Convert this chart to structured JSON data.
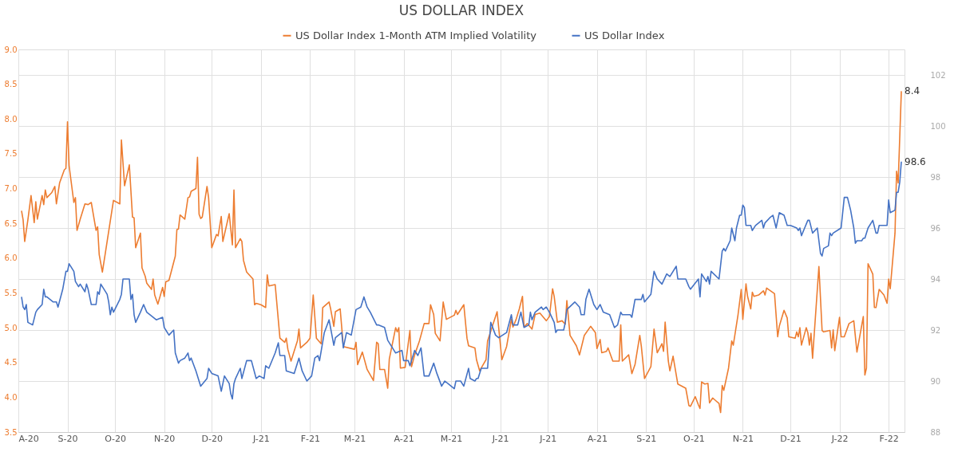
{
  "chart_data": {
    "type": "line",
    "title": "US DOLLAR INDEX",
    "xlim": [
      "2020-08-01",
      "2022-02-11"
    ],
    "xticks": [
      {
        "value": "2020-08-01",
        "label": "A-20"
      },
      {
        "value": "2020-09-01",
        "label": "S-20"
      },
      {
        "value": "2020-10-01",
        "label": "O-20"
      },
      {
        "value": "2020-11-01",
        "label": "N-20"
      },
      {
        "value": "2020-12-01",
        "label": "D-20"
      },
      {
        "value": "2021-01-01",
        "label": "J-21"
      },
      {
        "value": "2021-02-01",
        "label": "F-21"
      },
      {
        "value": "2021-03-01",
        "label": "M-21"
      },
      {
        "value": "2021-04-01",
        "label": "A-21"
      },
      {
        "value": "2021-05-01",
        "label": "M-21"
      },
      {
        "value": "2021-06-01",
        "label": "J-21"
      },
      {
        "value": "2021-07-01",
        "label": "J-21"
      },
      {
        "value": "2021-08-01",
        "label": "A-21"
      },
      {
        "value": "2021-09-01",
        "label": "S-21"
      },
      {
        "value": "2021-10-01",
        "label": "O-21"
      },
      {
        "value": "2021-11-01",
        "label": "N-21"
      },
      {
        "value": "2021-12-01",
        "label": "D-21"
      },
      {
        "value": "2022-01-01",
        "label": "J-22"
      },
      {
        "value": "2022-02-01",
        "label": "F-22"
      }
    ],
    "ylim": [
      3.5,
      9.0
    ],
    "yticks": [
      {
        "value": 3.5,
        "label": "3.5"
      },
      {
        "value": 4,
        "label": "4.0"
      },
      {
        "value": 4.5,
        "label": "4.5"
      },
      {
        "value": 5,
        "label": "5.0"
      },
      {
        "value": 5.5,
        "label": "5.5"
      },
      {
        "value": 6,
        "label": "6.0"
      },
      {
        "value": 6.5,
        "label": "6.5"
      },
      {
        "value": 7,
        "label": "7.0"
      },
      {
        "value": 7.5,
        "label": "7.5"
      },
      {
        "value": 8,
        "label": "8.0"
      },
      {
        "value": 8.5,
        "label": "8.5"
      },
      {
        "value": 9,
        "label": "9.0"
      }
    ],
    "y2lim": [
      88,
      103
    ],
    "y2ticks": [
      {
        "value": 88,
        "label": "88"
      },
      {
        "value": 90,
        "label": "90"
      },
      {
        "value": 92,
        "label": "92"
      },
      {
        "value": 94,
        "label": "94"
      },
      {
        "value": 96,
        "label": "96"
      },
      {
        "value": 98,
        "label": "98"
      },
      {
        "value": 100,
        "label": "100"
      },
      {
        "value": 102,
        "label": "102"
      }
    ],
    "grid": true,
    "legend": "top",
    "marker": "none",
    "line_style": "solid",
    "series": [
      {
        "name": "US Dollar Index 1-Month ATM Implied Volatility",
        "color": "#ed7d31",
        "axis": "y",
        "value_labels": [
          null,
          null,
          null,
          null,
          null,
          null,
          null,
          null,
          null,
          null,
          null,
          null,
          null,
          null,
          null,
          null,
          null,
          null,
          null,
          null,
          null,
          null,
          null,
          null,
          null,
          null,
          null,
          null,
          null,
          null,
          null,
          null,
          null,
          null,
          null,
          null,
          null,
          null,
          null,
          null,
          null,
          null,
          null,
          null,
          null,
          null,
          null,
          null,
          null,
          null,
          null,
          null,
          null,
          null,
          null,
          null,
          null,
          null,
          null,
          null,
          null,
          null,
          null,
          null,
          null,
          null,
          null,
          null,
          null,
          null,
          null,
          null,
          null,
          null,
          null,
          null,
          null,
          null,
          null,
          null,
          null,
          null,
          null,
          null,
          null,
          null,
          null,
          null,
          null,
          null,
          null,
          null,
          null,
          null,
          null,
          null,
          null,
          null,
          null,
          null,
          null,
          null,
          null,
          null,
          null,
          null,
          null,
          null,
          null,
          null,
          null,
          null,
          null,
          null,
          null,
          null,
          null,
          null,
          null,
          null,
          null,
          null,
          null,
          null,
          null,
          null,
          null,
          null,
          null,
          null,
          null,
          null,
          null,
          null,
          null,
          null,
          null,
          null,
          null,
          null,
          null,
          null,
          null,
          null,
          null,
          null,
          null,
          null,
          null,
          null,
          null,
          null,
          null,
          null,
          null,
          null,
          null,
          null,
          null,
          null,
          null,
          null,
          null,
          null,
          null,
          null,
          null,
          null,
          null,
          null,
          null,
          null,
          null,
          null,
          null,
          null,
          null,
          null,
          null,
          null,
          null,
          null,
          null,
          null,
          null,
          null,
          null,
          null,
          null,
          null,
          null,
          null,
          null,
          null,
          null,
          null,
          null,
          null,
          null,
          null,
          null,
          null,
          null,
          null,
          null,
          null,
          null,
          null,
          null,
          null,
          null,
          null,
          null,
          null,
          null,
          null,
          null,
          null,
          null,
          null,
          null,
          null,
          null,
          null,
          null,
          null,
          null,
          null,
          null,
          null,
          null,
          null,
          null,
          null,
          null,
          null,
          null,
          null,
          null,
          null,
          null,
          null,
          null,
          null,
          null,
          null,
          null,
          null,
          null,
          null,
          null,
          null,
          null,
          null,
          null,
          null,
          null,
          null,
          null,
          null,
          null,
          null,
          null,
          null,
          null,
          null,
          null,
          null,
          null,
          null,
          null,
          null,
          null,
          null,
          null,
          null,
          null,
          null,
          "8.4"
        ],
        "x": [
          "2020-08-03",
          "2020-08-04",
          "2020-08-05",
          "2020-08-07",
          "2020-08-09",
          "2020-08-11",
          "2020-08-12",
          "2020-08-13",
          "2020-08-16",
          "2020-08-17",
          "2020-08-18",
          "2020-08-19",
          "2020-08-22",
          "2020-08-24",
          "2020-08-25",
          "2020-08-27",
          "2020-08-30",
          "2020-08-31",
          "2020-09-01",
          "2020-09-02",
          "2020-09-05",
          "2020-09-06",
          "2020-09-07",
          "2020-09-09",
          "2020-09-12",
          "2020-09-14",
          "2020-09-16",
          "2020-09-19",
          "2020-09-20",
          "2020-09-21",
          "2020-09-23",
          "2020-09-26",
          "2020-09-30",
          "2020-10-04",
          "2020-10-05",
          "2020-10-07",
          "2020-10-10",
          "2020-10-12",
          "2020-10-13",
          "2020-10-14",
          "2020-10-17",
          "2020-10-18",
          "2020-10-20",
          "2020-10-21",
          "2020-10-24",
          "2020-10-25",
          "2020-10-26",
          "2020-10-28",
          "2020-10-31",
          "2020-11-01",
          "2020-11-02",
          "2020-11-04",
          "2020-11-08",
          "2020-11-09",
          "2020-11-10",
          "2020-11-11",
          "2020-11-14",
          "2020-11-16",
          "2020-11-17",
          "2020-11-18",
          "2020-11-21",
          "2020-11-22",
          "2020-11-23",
          "2020-11-24",
          "2020-11-25",
          "2020-11-28",
          "2020-11-29",
          "2020-12-01",
          "2020-12-04",
          "2020-12-05",
          "2020-12-07",
          "2020-12-08",
          "2020-12-12",
          "2020-12-14",
          "2020-12-15",
          "2020-12-16",
          "2020-12-19",
          "2020-12-20",
          "2020-12-21",
          "2020-12-23",
          "2020-12-27",
          "2020-12-28",
          "2020-12-29",
          "2021-01-01",
          "2021-01-04",
          "2021-01-05",
          "2021-01-06",
          "2021-01-10",
          "2021-01-13",
          "2021-01-16",
          "2021-01-17",
          "2021-01-18",
          "2021-01-20",
          "2021-01-24",
          "2021-01-25",
          "2021-01-26",
          "2021-01-30",
          "2021-02-01",
          "2021-02-03",
          "2021-02-05",
          "2021-02-08",
          "2021-02-09",
          "2021-02-13",
          "2021-02-14",
          "2021-02-16",
          "2021-02-17",
          "2021-02-20",
          "2021-02-22",
          "2021-03-01",
          "2021-03-02",
          "2021-03-03",
          "2021-03-06",
          "2021-03-09",
          "2021-03-13",
          "2021-03-15",
          "2021-03-16",
          "2021-03-17",
          "2021-03-20",
          "2021-03-22",
          "2021-03-23",
          "2021-03-27",
          "2021-03-28",
          "2021-03-29",
          "2021-03-30",
          "2021-04-02",
          "2021-04-05",
          "2021-04-06",
          "2021-04-08",
          "2021-04-11",
          "2021-04-14",
          "2021-04-17",
          "2021-04-18",
          "2021-04-20",
          "2021-04-21",
          "2021-04-24",
          "2021-04-26",
          "2021-04-28",
          "2021-05-03",
          "2021-05-04",
          "2021-05-05",
          "2021-05-09",
          "2021-05-11",
          "2021-05-12",
          "2021-05-16",
          "2021-05-17",
          "2021-05-19",
          "2021-05-21",
          "2021-05-23",
          "2021-05-24",
          "2021-05-27",
          "2021-05-30",
          "2021-05-31",
          "2021-06-02",
          "2021-06-05",
          "2021-06-08",
          "2021-06-09",
          "2021-06-11",
          "2021-06-13",
          "2021-06-15",
          "2021-06-16",
          "2021-06-18",
          "2021-06-21",
          "2021-06-23",
          "2021-06-26",
          "2021-06-30",
          "2021-07-02",
          "2021-07-04",
          "2021-07-05",
          "2021-07-07",
          "2021-07-10",
          "2021-07-12",
          "2021-07-13",
          "2021-07-15",
          "2021-07-19",
          "2021-07-21",
          "2021-07-24",
          "2021-07-28",
          "2021-07-31",
          "2021-08-01",
          "2021-08-03",
          "2021-08-04",
          "2021-08-07",
          "2021-08-08",
          "2021-08-11",
          "2021-08-15",
          "2021-08-16",
          "2021-08-17",
          "2021-08-21",
          "2021-08-23",
          "2021-08-25",
          "2021-08-28",
          "2021-08-29",
          "2021-08-31",
          "2021-09-04",
          "2021-09-06",
          "2021-09-08",
          "2021-09-11",
          "2021-09-12",
          "2021-09-13",
          "2021-09-15",
          "2021-09-16",
          "2021-09-18",
          "2021-09-21",
          "2021-09-26",
          "2021-09-28",
          "2021-09-29",
          "2021-10-02",
          "2021-10-04",
          "2021-10-05",
          "2021-10-06",
          "2021-10-08",
          "2021-10-10",
          "2021-10-11",
          "2021-10-13",
          "2021-10-15",
          "2021-10-17",
          "2021-10-18",
          "2021-10-19",
          "2021-10-20",
          "2021-10-23",
          "2021-10-25",
          "2021-10-26",
          "2021-10-29",
          "2021-10-31",
          "2021-11-01",
          "2021-11-03",
          "2021-11-04",
          "2021-11-06",
          "2021-11-07",
          "2021-11-08",
          "2021-11-11",
          "2021-11-14",
          "2021-11-15",
          "2021-11-16",
          "2021-11-21",
          "2021-11-23",
          "2021-11-24",
          "2021-11-27",
          "2021-11-29",
          "2021-11-30",
          "2021-12-04",
          "2021-12-05",
          "2021-12-06",
          "2021-12-07",
          "2021-12-08",
          "2021-12-11",
          "2021-12-12",
          "2021-12-13",
          "2021-12-14",
          "2021-12-15",
          "2021-12-19",
          "2021-12-21",
          "2021-12-22",
          "2021-12-26",
          "2021-12-27",
          "2021-12-28",
          "2021-12-29",
          "2022-01-01",
          "2022-01-02",
          "2022-01-04",
          "2022-01-07",
          "2022-01-10",
          "2022-01-12",
          "2022-01-16",
          "2022-01-17",
          "2022-01-18",
          "2022-01-19",
          "2022-01-22",
          "2022-01-23",
          "2022-01-24",
          "2022-01-26",
          "2022-01-29",
          "2022-01-31",
          "2022-02-01",
          "2022-02-02",
          "2022-02-05",
          "2022-02-06",
          "2022-02-07",
          "2022-02-09"
        ],
        "values": [
          6.68,
          6.55,
          6.24,
          6.55,
          6.9,
          6.51,
          6.81,
          6.56,
          6.9,
          6.77,
          6.98,
          6.87,
          6.94,
          7.03,
          6.78,
          7.08,
          7.27,
          7.29,
          7.96,
          7.33,
          6.8,
          6.87,
          6.4,
          6.56,
          6.78,
          6.77,
          6.8,
          6.4,
          6.45,
          6.05,
          5.8,
          6.24,
          6.83,
          6.78,
          7.7,
          7.04,
          7.34,
          6.59,
          6.58,
          6.15,
          6.36,
          5.86,
          5.74,
          5.64,
          5.55,
          5.7,
          5.47,
          5.34,
          5.58,
          5.45,
          5.66,
          5.68,
          6.03,
          6.41,
          6.42,
          6.62,
          6.56,
          6.87,
          6.88,
          6.96,
          7.0,
          7.45,
          6.63,
          6.57,
          6.59,
          7.03,
          6.87,
          6.15,
          6.34,
          6.32,
          6.6,
          6.24,
          6.64,
          6.19,
          6.98,
          6.15,
          6.28,
          6.24,
          5.97,
          5.8,
          5.7,
          5.33,
          5.35,
          5.33,
          5.29,
          5.76,
          5.6,
          5.62,
          4.85,
          4.79,
          4.85,
          4.69,
          4.52,
          4.81,
          4.98,
          4.71,
          4.79,
          4.85,
          5.47,
          4.85,
          4.77,
          5.29,
          5.37,
          5.27,
          5.02,
          5.23,
          5.27,
          4.73,
          4.69,
          4.79,
          4.47,
          4.65,
          4.4,
          4.24,
          4.79,
          4.77,
          4.4,
          4.4,
          4.13,
          4.55,
          5.0,
          4.94,
          5.0,
          4.42,
          4.43,
          4.96,
          4.44,
          4.61,
          4.81,
          5.06,
          5.06,
          5.33,
          5.19,
          4.92,
          4.81,
          5.37,
          5.12,
          5.18,
          5.25,
          5.19,
          5.33,
          4.85,
          4.74,
          4.71,
          4.54,
          4.38,
          4.46,
          4.54,
          4.81,
          5.02,
          5.23,
          5.0,
          4.54,
          4.73,
          5.12,
          5.01,
          5.12,
          5.27,
          5.45,
          5.01,
          5.06,
          4.98,
          5.19,
          5.21,
          5.1,
          5.16,
          5.56,
          5.45,
          5.08,
          5.1,
          5.05,
          5.39,
          4.89,
          4.74,
          4.61,
          4.89,
          5.02,
          4.93,
          4.7,
          4.83,
          4.64,
          4.66,
          4.71,
          4.52,
          4.52,
          5.04,
          4.52,
          4.61,
          4.34,
          4.47,
          4.89,
          4.73,
          4.27,
          4.44,
          4.98,
          4.64,
          4.77,
          4.66,
          5.08,
          4.52,
          4.38,
          4.59,
          4.19,
          4.13,
          3.88,
          3.87,
          4.01,
          3.89,
          3.84,
          4.22,
          4.19,
          4.2,
          3.92,
          3.99,
          3.95,
          3.91,
          3.78,
          4.17,
          4.1,
          4.42,
          4.81,
          4.75,
          5.19,
          5.55,
          5.12,
          5.63,
          5.45,
          5.27,
          5.51,
          5.45,
          5.47,
          5.53,
          5.47,
          5.57,
          5.49,
          4.87,
          5.02,
          5.25,
          5.14,
          4.87,
          4.85,
          4.94,
          4.87,
          5.0,
          4.75,
          5.0,
          4.93,
          4.75,
          4.92,
          4.56,
          5.88,
          4.96,
          4.94,
          4.96,
          4.71,
          4.97,
          4.67,
          5.15,
          4.87,
          4.87,
          5.06,
          5.1,
          4.65,
          5.16,
          4.32,
          4.42,
          5.92,
          5.77,
          5.29,
          5.29,
          5.55,
          5.47,
          5.35,
          5.7,
          5.56,
          6.36,
          7.25,
          7.08,
          8.4
        ]
      },
      {
        "name": "US Dollar Index",
        "color": "#4472c4",
        "axis": "y2",
        "value_labels": [
          null,
          null,
          null,
          null,
          null,
          null,
          null,
          null,
          null,
          null,
          null,
          null,
          null,
          null,
          null,
          null,
          null,
          null,
          null,
          null,
          null,
          null,
          null,
          null,
          null,
          null,
          null,
          null,
          null,
          null,
          null,
          null,
          null,
          null,
          null,
          null,
          null,
          null,
          null,
          null,
          null,
          null,
          null,
          null,
          null,
          null,
          null,
          null,
          null,
          null,
          null,
          null,
          null,
          null,
          null,
          null,
          null,
          null,
          null,
          null,
          null,
          null,
          null,
          null,
          null,
          null,
          null,
          null,
          null,
          null,
          null,
          null,
          null,
          null,
          null,
          null,
          null,
          null,
          null,
          null,
          null,
          null,
          null,
          null,
          null,
          null,
          null,
          null,
          null,
          null,
          null,
          null,
          null,
          null,
          null,
          null,
          null,
          null,
          null,
          null,
          null,
          null,
          null,
          null,
          null,
          null,
          null,
          null,
          null,
          null,
          null,
          null,
          null,
          null,
          null,
          null,
          null,
          null,
          null,
          null,
          null,
          null,
          null,
          null,
          null,
          null,
          null,
          null,
          null,
          null,
          null,
          null,
          null,
          null,
          null,
          null,
          null,
          null,
          null,
          null,
          null,
          null,
          null,
          null,
          null,
          null,
          null,
          null,
          null,
          null,
          null,
          null,
          null,
          null,
          null,
          null,
          null,
          null,
          null,
          null,
          null,
          null,
          null,
          null,
          null,
          null,
          null,
          null,
          null,
          null,
          null,
          null,
          null,
          null,
          null,
          null,
          null,
          null,
          null,
          null,
          null,
          null,
          null,
          null,
          null,
          null,
          null,
          null,
          null,
          null,
          null,
          null,
          null,
          null,
          null,
          null,
          null,
          null,
          null,
          null,
          null,
          null,
          null,
          null,
          null,
          null,
          null,
          null,
          null,
          null,
          null,
          null,
          null,
          null,
          null,
          null,
          null,
          null,
          null,
          null,
          null,
          null,
          null,
          null,
          null,
          null,
          null,
          null,
          null,
          null,
          null,
          null,
          null,
          null,
          null,
          null,
          null,
          null,
          null,
          null,
          null,
          null,
          null,
          null,
          null,
          null,
          null,
          null,
          null,
          null,
          null,
          null,
          null,
          null,
          null,
          null,
          null,
          null,
          null,
          null,
          null,
          null,
          null,
          null,
          null,
          null,
          null,
          null,
          "98.6"
        ],
        "x": [
          "2020-08-03",
          "2020-08-04",
          "2020-08-05",
          "2020-08-06",
          "2020-08-07",
          "2020-08-10",
          "2020-08-12",
          "2020-08-13",
          "2020-08-16",
          "2020-08-17",
          "2020-08-18",
          "2020-08-19",
          "2020-08-23",
          "2020-08-25",
          "2020-08-26",
          "2020-08-29",
          "2020-08-31",
          "2020-09-01",
          "2020-09-02",
          "2020-09-05",
          "2020-09-06",
          "2020-09-08",
          "2020-09-09",
          "2020-09-12",
          "2020-09-13",
          "2020-09-14",
          "2020-09-16",
          "2020-09-19",
          "2020-09-20",
          "2020-09-21",
          "2020-09-22",
          "2020-09-26",
          "2020-09-27",
          "2020-09-28",
          "2020-09-29",
          "2020-09-30",
          "2020-10-04",
          "2020-10-05",
          "2020-10-06",
          "2020-10-07",
          "2020-10-10",
          "2020-10-11",
          "2020-10-12",
          "2020-10-13",
          "2020-10-14",
          "2020-10-17",
          "2020-10-19",
          "2020-10-21",
          "2020-10-27",
          "2020-10-31",
          "2020-11-01",
          "2020-11-02",
          "2020-11-04",
          "2020-11-07",
          "2020-11-08",
          "2020-11-10",
          "2020-11-11",
          "2020-11-14",
          "2020-11-16",
          "2020-11-17",
          "2020-11-18",
          "2020-11-21",
          "2020-11-24",
          "2020-11-28",
          "2020-11-29",
          "2020-12-01",
          "2020-12-05",
          "2020-12-07",
          "2020-12-09",
          "2020-12-12",
          "2020-12-13",
          "2020-12-14",
          "2020-12-15",
          "2020-12-16",
          "2020-12-19",
          "2020-12-20",
          "2020-12-23",
          "2020-12-26",
          "2020-12-29",
          "2020-12-31",
          "2021-01-03",
          "2021-01-04",
          "2021-01-06",
          "2021-01-10",
          "2021-01-12",
          "2021-01-13",
          "2021-01-16",
          "2021-01-17",
          "2021-01-22",
          "2021-01-25",
          "2021-01-27",
          "2021-01-30",
          "2021-02-02",
          "2021-02-04",
          "2021-02-06",
          "2021-02-07",
          "2021-02-10",
          "2021-02-13",
          "2021-02-16",
          "2021-02-17",
          "2021-02-21",
          "2021-02-22",
          "2021-02-24",
          "2021-02-27",
          "2021-03-02",
          "2021-03-05",
          "2021-03-07",
          "2021-03-09",
          "2021-03-11",
          "2021-03-15",
          "2021-03-16",
          "2021-03-20",
          "2021-03-22",
          "2021-03-25",
          "2021-03-27",
          "2021-03-31",
          "2021-04-01",
          "2021-04-04",
          "2021-04-05",
          "2021-04-07",
          "2021-04-08",
          "2021-04-10",
          "2021-04-12",
          "2021-04-14",
          "2021-04-17",
          "2021-04-20",
          "2021-04-22",
          "2021-04-25",
          "2021-04-27",
          "2021-04-29",
          "2021-05-03",
          "2021-05-04",
          "2021-05-07",
          "2021-05-09",
          "2021-05-12",
          "2021-05-13",
          "2021-05-16",
          "2021-05-17",
          "2021-05-18",
          "2021-05-20",
          "2021-05-24",
          "2021-05-26",
          "2021-05-29",
          "2021-05-31",
          "2021-06-05",
          "2021-06-08",
          "2021-06-09",
          "2021-06-12",
          "2021-06-14",
          "2021-06-16",
          "2021-06-19",
          "2021-06-20",
          "2021-06-21",
          "2021-06-23",
          "2021-06-27",
          "2021-06-28",
          "2021-06-30",
          "2021-07-02",
          "2021-07-05",
          "2021-07-06",
          "2021-07-07",
          "2021-07-11",
          "2021-07-12",
          "2021-07-13",
          "2021-07-18",
          "2021-07-21",
          "2021-07-22",
          "2021-07-24",
          "2021-07-25",
          "2021-07-27",
          "2021-07-30",
          "2021-08-01",
          "2021-08-03",
          "2021-08-05",
          "2021-08-09",
          "2021-08-12",
          "2021-08-14",
          "2021-08-16",
          "2021-08-17",
          "2021-08-22",
          "2021-08-23",
          "2021-08-25",
          "2021-08-29",
          "2021-08-30",
          "2021-08-31",
          "2021-09-04",
          "2021-09-06",
          "2021-09-08",
          "2021-09-11",
          "2021-09-14",
          "2021-09-16",
          "2021-09-20",
          "2021-09-21",
          "2021-09-26",
          "2021-09-28",
          "2021-09-29",
          "2021-10-04",
          "2021-10-05",
          "2021-10-06",
          "2021-10-09",
          "2021-10-10",
          "2021-10-11",
          "2021-10-12",
          "2021-10-17",
          "2021-10-19",
          "2021-10-20",
          "2021-10-21",
          "2021-10-24",
          "2021-10-25",
          "2021-10-27",
          "2021-10-28",
          "2021-10-30",
          "2021-10-31",
          "2021-11-01",
          "2021-11-02",
          "2021-11-03",
          "2021-11-06",
          "2021-11-07",
          "2021-11-09",
          "2021-11-13",
          "2021-11-14",
          "2021-11-15",
          "2021-11-18",
          "2021-11-20",
          "2021-11-22",
          "2021-11-24",
          "2021-11-27",
          "2021-11-29",
          "2021-12-01",
          "2021-12-05",
          "2021-12-06",
          "2021-12-07",
          "2021-12-08",
          "2021-12-10",
          "2021-12-12",
          "2021-12-13",
          "2021-12-15",
          "2021-12-18",
          "2021-12-20",
          "2021-12-21",
          "2021-12-22",
          "2021-12-25",
          "2021-12-26",
          "2021-12-27",
          "2021-12-28",
          "2022-01-02",
          "2022-01-04",
          "2022-01-06",
          "2022-01-08",
          "2022-01-10",
          "2022-01-11",
          "2022-01-12",
          "2022-01-15",
          "2022-01-16",
          "2022-01-17",
          "2022-01-19",
          "2022-01-22",
          "2022-01-24",
          "2022-01-25",
          "2022-01-26",
          "2022-01-29",
          "2022-01-31",
          "2022-02-01",
          "2022-02-02",
          "2022-02-05",
          "2022-02-06",
          "2022-02-07",
          "2022-02-08",
          "2022-02-09"
        ],
        "values": [
          93.3,
          92.9,
          92.8,
          93.0,
          92.3,
          92.2,
          92.7,
          92.8,
          93.0,
          93.6,
          93.3,
          93.3,
          93.1,
          93.1,
          92.9,
          93.6,
          94.3,
          94.3,
          94.6,
          94.3,
          93.9,
          93.7,
          93.8,
          93.5,
          93.8,
          93.6,
          93.0,
          93.0,
          93.5,
          93.4,
          93.8,
          93.4,
          93.1,
          92.6,
          92.9,
          92.7,
          93.2,
          93.4,
          94.0,
          94.0,
          94.0,
          93.2,
          93.4,
          92.6,
          92.3,
          92.7,
          93.0,
          92.7,
          92.4,
          92.5,
          92.1,
          92.0,
          91.8,
          92.0,
          91.1,
          90.7,
          90.8,
          90.9,
          91.1,
          90.8,
          90.9,
          90.4,
          89.8,
          90.1,
          90.5,
          90.3,
          90.2,
          89.6,
          90.2,
          89.9,
          89.5,
          89.3,
          89.9,
          90.1,
          90.5,
          90.1,
          90.8,
          90.8,
          90.1,
          90.2,
          90.1,
          90.6,
          90.5,
          91.1,
          91.5,
          91.0,
          91.0,
          90.4,
          90.3,
          90.9,
          90.4,
          90.0,
          90.2,
          90.9,
          91.0,
          90.8,
          91.9,
          92.4,
          91.4,
          91.7,
          91.9,
          91.3,
          91.9,
          91.8,
          92.8,
          92.9,
          93.3,
          92.9,
          92.7,
          92.2,
          92.2,
          92.1,
          91.6,
          91.3,
          91.1,
          91.2,
          90.8,
          90.8,
          90.6,
          91.0,
          91.2,
          91.0,
          91.3,
          90.2,
          90.2,
          90.7,
          90.3,
          89.8,
          90.0,
          89.9,
          89.7,
          90.0,
          90.0,
          89.8,
          90.5,
          90.1,
          90.0,
          90.1,
          90.1,
          90.5,
          90.5,
          92.3,
          91.8,
          91.7,
          91.9,
          92.6,
          92.2,
          92.2,
          92.7,
          92.1,
          92.2,
          92.7,
          92.4,
          92.7,
          92.9,
          92.8,
          92.9,
          92.7,
          92.3,
          91.9,
          92.0,
          92.0,
          92.3,
          92.8,
          93.1,
          92.9,
          92.6,
          92.6,
          93.2,
          93.6,
          93.0,
          92.8,
          93.0,
          92.7,
          92.6,
          92.1,
          92.2,
          92.7,
          92.6,
          92.6,
          92.5,
          93.2,
          93.2,
          93.4,
          93.1,
          93.4,
          94.3,
          94.0,
          93.8,
          94.2,
          94.1,
          94.5,
          94.0,
          94.0,
          93.7,
          93.6,
          94.0,
          93.3,
          94.2,
          93.9,
          94.1,
          93.8,
          94.3,
          94.0,
          95.1,
          95.2,
          95.1,
          95.5,
          96.0,
          95.5,
          96.0,
          96.5,
          96.5,
          96.9,
          96.8,
          96.1,
          96.1,
          95.9,
          96.1,
          96.3,
          96.0,
          96.2,
          96.4,
          96.5,
          96.0,
          96.6,
          96.5,
          96.1,
          96.1,
          96.0,
          95.9,
          96.0,
          95.7,
          96.0,
          96.3,
          96.3,
          95.8,
          96.0,
          95.0,
          94.9,
          95.2,
          95.3,
          95.8,
          95.7,
          95.8,
          96.0,
          97.2,
          97.2,
          96.7,
          96.0,
          95.4,
          95.5,
          95.5,
          95.6,
          95.6,
          96.0,
          96.3,
          95.8,
          95.8,
          96.1,
          96.1,
          96.1,
          97.1,
          96.6,
          96.7,
          97.4,
          97.4,
          97.8,
          98.6
        ]
      }
    ],
    "data_labels": false
  }
}
